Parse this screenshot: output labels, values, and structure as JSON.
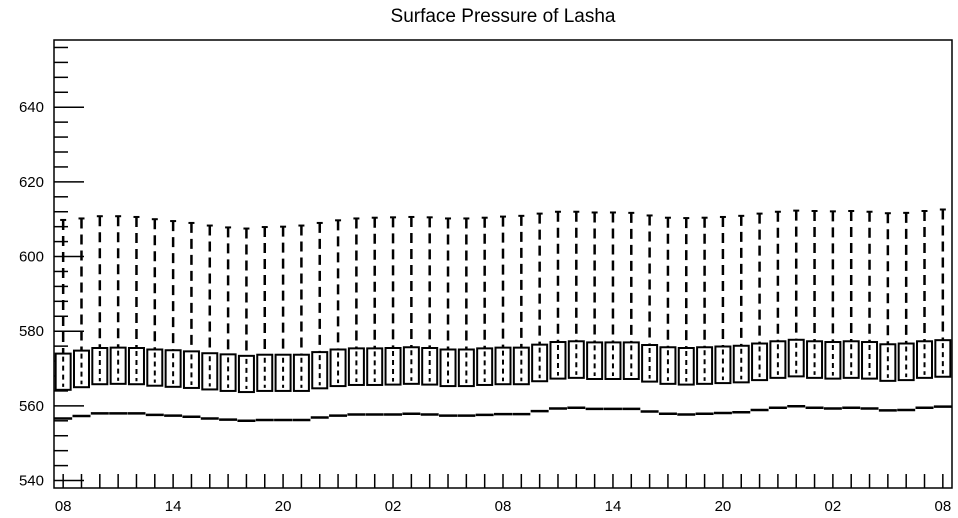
{
  "chart_data": {
    "type": "boxplot",
    "title": "Surface Pressure of Lasha",
    "xlabel": "",
    "ylabel": "",
    "ylim": [
      538,
      658
    ],
    "y_ticks": [
      540,
      560,
      580,
      600,
      620,
      640
    ],
    "x_ticks": [
      "08",
      "14",
      "20",
      "02",
      "08",
      "14",
      "20",
      "02",
      "08"
    ],
    "x_unit": "hours",
    "x_range_steps": [
      -0.5,
      48.5
    ],
    "x_tick_step_interval": 6,
    "grid": false,
    "legend": "none",
    "boxes": [
      {
        "step": 0,
        "min": 556.6,
        "q1": 564.3,
        "median": 569.8,
        "q3": 574.0,
        "max": 609.8
      },
      {
        "step": 1,
        "min": 557.3,
        "q1": 565.0,
        "median": 570.3,
        "q3": 574.8,
        "max": 610.2
      },
      {
        "step": 2,
        "min": 558.0,
        "q1": 565.8,
        "median": 570.8,
        "q3": 575.5,
        "max": 610.8
      },
      {
        "step": 3,
        "min": 558.0,
        "q1": 565.9,
        "median": 570.9,
        "q3": 575.6,
        "max": 610.8
      },
      {
        "step": 4,
        "min": 558.0,
        "q1": 565.8,
        "median": 570.8,
        "q3": 575.5,
        "max": 610.6
      },
      {
        "step": 5,
        "min": 557.6,
        "q1": 565.4,
        "median": 570.4,
        "q3": 575.1,
        "max": 610.0
      },
      {
        "step": 6,
        "min": 557.4,
        "q1": 565.1,
        "median": 570.1,
        "q3": 574.9,
        "max": 609.5
      },
      {
        "step": 7,
        "min": 557.1,
        "q1": 564.8,
        "median": 569.8,
        "q3": 574.6,
        "max": 609.0
      },
      {
        "step": 8,
        "min": 556.6,
        "q1": 564.4,
        "median": 569.4,
        "q3": 574.1,
        "max": 608.3
      },
      {
        "step": 9,
        "min": 556.3,
        "q1": 564.0,
        "median": 569.0,
        "q3": 573.8,
        "max": 607.8
      },
      {
        "step": 10,
        "min": 556.0,
        "q1": 563.7,
        "median": 568.7,
        "q3": 573.4,
        "max": 607.5
      },
      {
        "step": 11,
        "min": 556.2,
        "q1": 564.0,
        "median": 569.0,
        "q3": 573.7,
        "max": 607.9
      },
      {
        "step": 12,
        "min": 556.2,
        "q1": 564.0,
        "median": 569.0,
        "q3": 573.7,
        "max": 608.0
      },
      {
        "step": 13,
        "min": 556.2,
        "q1": 564.0,
        "median": 569.0,
        "q3": 573.7,
        "max": 608.3
      },
      {
        "step": 14,
        "min": 556.9,
        "q1": 564.7,
        "median": 569.7,
        "q3": 574.4,
        "max": 609.0
      },
      {
        "step": 15,
        "min": 557.4,
        "q1": 565.3,
        "median": 570.3,
        "q3": 575.1,
        "max": 609.7
      },
      {
        "step": 16,
        "min": 557.7,
        "q1": 565.6,
        "median": 570.6,
        "q3": 575.4,
        "max": 610.2
      },
      {
        "step": 17,
        "min": 557.7,
        "q1": 565.6,
        "median": 570.6,
        "q3": 575.4,
        "max": 610.4
      },
      {
        "step": 18,
        "min": 557.7,
        "q1": 565.7,
        "median": 570.7,
        "q3": 575.5,
        "max": 610.5
      },
      {
        "step": 19,
        "min": 557.9,
        "q1": 565.9,
        "median": 570.9,
        "q3": 575.7,
        "max": 610.6
      },
      {
        "step": 20,
        "min": 557.7,
        "q1": 565.7,
        "median": 570.7,
        "q3": 575.5,
        "max": 610.5
      },
      {
        "step": 21,
        "min": 557.4,
        "q1": 565.3,
        "median": 570.3,
        "q3": 575.1,
        "max": 610.2
      },
      {
        "step": 22,
        "min": 557.4,
        "q1": 565.3,
        "median": 570.3,
        "q3": 575.1,
        "max": 610.2
      },
      {
        "step": 23,
        "min": 557.6,
        "q1": 565.6,
        "median": 570.6,
        "q3": 575.4,
        "max": 610.4
      },
      {
        "step": 24,
        "min": 557.8,
        "q1": 565.8,
        "median": 570.8,
        "q3": 575.6,
        "max": 610.7
      },
      {
        "step": 25,
        "min": 557.8,
        "q1": 565.8,
        "median": 570.8,
        "q3": 575.6,
        "max": 610.9
      },
      {
        "step": 26,
        "min": 558.6,
        "q1": 566.6,
        "median": 571.6,
        "q3": 576.4,
        "max": 611.5
      },
      {
        "step": 27,
        "min": 559.3,
        "q1": 567.3,
        "median": 572.3,
        "q3": 577.1,
        "max": 612.0
      },
      {
        "step": 28,
        "min": 559.5,
        "q1": 567.5,
        "median": 572.5,
        "q3": 577.3,
        "max": 612.0
      },
      {
        "step": 29,
        "min": 559.2,
        "q1": 567.2,
        "median": 572.2,
        "q3": 577.0,
        "max": 611.8
      },
      {
        "step": 30,
        "min": 559.2,
        "q1": 567.2,
        "median": 572.2,
        "q3": 577.0,
        "max": 611.8
      },
      {
        "step": 31,
        "min": 559.2,
        "q1": 567.2,
        "median": 572.2,
        "q3": 577.0,
        "max": 611.7
      },
      {
        "step": 32,
        "min": 558.5,
        "q1": 566.5,
        "median": 571.5,
        "q3": 576.3,
        "max": 611.0
      },
      {
        "step": 33,
        "min": 557.9,
        "q1": 565.9,
        "median": 570.9,
        "q3": 575.7,
        "max": 610.4
      },
      {
        "step": 34,
        "min": 557.7,
        "q1": 565.7,
        "median": 570.7,
        "q3": 575.5,
        "max": 610.3
      },
      {
        "step": 35,
        "min": 557.9,
        "q1": 565.9,
        "median": 570.9,
        "q3": 575.7,
        "max": 610.4
      },
      {
        "step": 36,
        "min": 558.1,
        "q1": 566.1,
        "median": 571.1,
        "q3": 575.9,
        "max": 610.6
      },
      {
        "step": 37,
        "min": 558.3,
        "q1": 566.3,
        "median": 571.3,
        "q3": 576.1,
        "max": 610.9
      },
      {
        "step": 38,
        "min": 558.9,
        "q1": 566.9,
        "median": 571.9,
        "q3": 576.7,
        "max": 611.5
      },
      {
        "step": 39,
        "min": 559.5,
        "q1": 567.5,
        "median": 572.5,
        "q3": 577.3,
        "max": 612.0
      },
      {
        "step": 40,
        "min": 559.9,
        "q1": 567.9,
        "median": 572.9,
        "q3": 577.7,
        "max": 612.3
      },
      {
        "step": 41,
        "min": 559.5,
        "q1": 567.5,
        "median": 572.5,
        "q3": 577.3,
        "max": 612.2
      },
      {
        "step": 42,
        "min": 559.3,
        "q1": 567.3,
        "median": 572.3,
        "q3": 577.1,
        "max": 612.1
      },
      {
        "step": 43,
        "min": 559.5,
        "q1": 567.5,
        "median": 572.5,
        "q3": 577.3,
        "max": 612.2
      },
      {
        "step": 44,
        "min": 559.3,
        "q1": 567.3,
        "median": 572.3,
        "q3": 577.1,
        "max": 612.0
      },
      {
        "step": 45,
        "min": 558.8,
        "q1": 566.7,
        "median": 571.7,
        "q3": 576.5,
        "max": 611.6
      },
      {
        "step": 46,
        "min": 558.9,
        "q1": 566.9,
        "median": 571.9,
        "q3": 576.7,
        "max": 611.7
      },
      {
        "step": 47,
        "min": 559.5,
        "q1": 567.5,
        "median": 572.5,
        "q3": 577.3,
        "max": 612.2
      },
      {
        "step": 48,
        "min": 559.8,
        "q1": 567.8,
        "median": 572.8,
        "q3": 577.6,
        "max": 612.6
      }
    ]
  }
}
